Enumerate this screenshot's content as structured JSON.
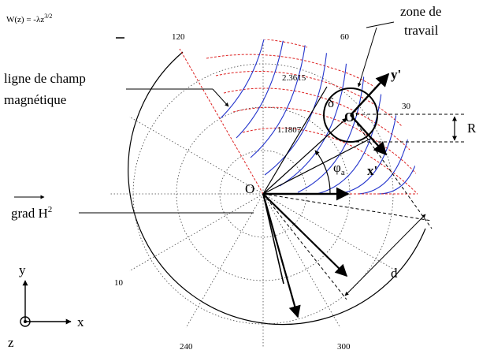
{
  "formula": {
    "lhs": "W(z) = -",
    "lambda": "λ",
    "z": "z",
    "exp": "3/2"
  },
  "labels": {
    "zone_line1": "zone de",
    "zone_line2": "travail",
    "field_line1": "ligne de champ",
    "field_line2": "magnétique",
    "grad": "grad H",
    "grad_sup": "2",
    "origin": "O",
    "center": "O'",
    "delta": "δ",
    "phi": "φ",
    "phi_sub": "a",
    "y_prime": "y'",
    "x_prime": "x'",
    "R": "R",
    "d": "d",
    "axis_x": "x",
    "axis_y": "y",
    "axis_z": "z"
  },
  "polar": {
    "angle_ticks": [
      "120",
      "60",
      "30",
      "10",
      "240",
      "300"
    ],
    "radius_ticks": [
      "2.3615",
      "1.1807"
    ]
  },
  "colors": {
    "field_lines": "#2233cc",
    "equipotentials": "#dd2222",
    "ink": "#000000",
    "grid": "#555555"
  }
}
